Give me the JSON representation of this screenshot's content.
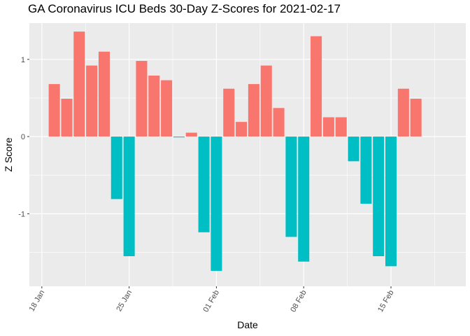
{
  "chart_data": {
    "type": "bar",
    "title": "GA Coronavirus ICU Beds 30-Day Z-Scores for 2021-02-17",
    "xlabel": "Date",
    "ylabel": "Z Score",
    "x_tick_labels": [
      "18 Jan",
      "25 Jan",
      "01 Feb",
      "08 Feb",
      "15 Feb"
    ],
    "x_tick_dates": [
      "2021-01-18",
      "2021-01-25",
      "2021-02-01",
      "2021-02-08",
      "2021-02-15"
    ],
    "xlim": [
      "2021-01-17",
      "2021-02-21"
    ],
    "y_ticks": [
      -1,
      0,
      1
    ],
    "y_tick_labels": [
      "-1",
      "0",
      "1"
    ],
    "ylim": [
      -1.94,
      1.47
    ],
    "grid": true,
    "legend": "none",
    "colors": {
      "positive": "#F8766D",
      "negative": "#00BFC4",
      "panel": "#EBEBEB",
      "grid": "#FFFFFF"
    },
    "x": [
      "2021-01-19",
      "2021-01-20",
      "2021-01-21",
      "2021-01-22",
      "2021-01-23",
      "2021-01-24",
      "2021-01-25",
      "2021-01-26",
      "2021-01-27",
      "2021-01-28",
      "2021-01-29",
      "2021-01-30",
      "2021-01-31",
      "2021-02-01",
      "2021-02-02",
      "2021-02-03",
      "2021-02-04",
      "2021-02-05",
      "2021-02-06",
      "2021-02-07",
      "2021-02-08",
      "2021-02-09",
      "2021-02-10",
      "2021-02-11",
      "2021-02-12",
      "2021-02-13",
      "2021-02-14",
      "2021-02-15",
      "2021-02-16",
      "2021-02-17"
    ],
    "values": [
      0.68,
      0.49,
      1.36,
      0.92,
      1.1,
      -0.81,
      -1.55,
      0.98,
      0.79,
      0.73,
      -0.01,
      0.05,
      -1.24,
      -1.74,
      0.62,
      0.19,
      0.68,
      0.92,
      0.37,
      -1.3,
      -1.62,
      1.3,
      0.25,
      0.25,
      -0.32,
      -0.87,
      -1.55,
      -1.68,
      0.62,
      0.49
    ]
  }
}
